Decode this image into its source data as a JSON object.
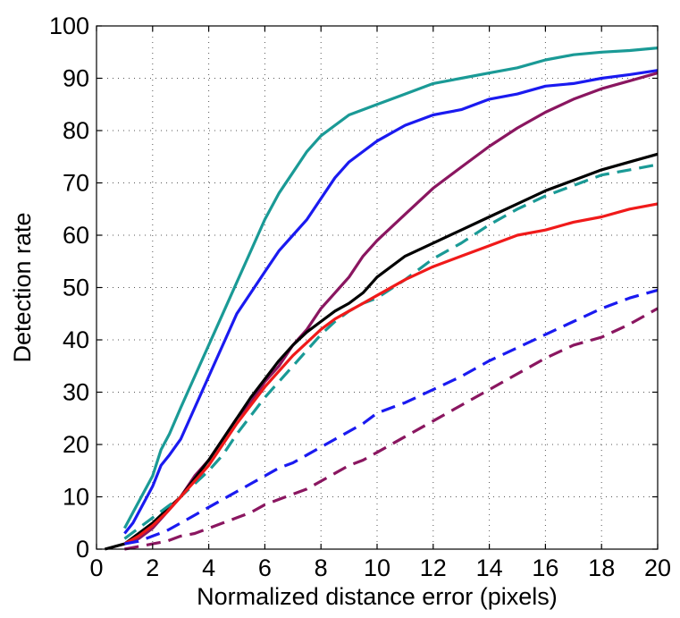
{
  "chart_data": {
    "type": "line",
    "title": "",
    "xlabel": "Normalized distance error (pixels)",
    "ylabel": "Detection rate",
    "xlim": [
      0,
      20
    ],
    "ylim": [
      0,
      100
    ],
    "xticks": [
      0,
      2,
      4,
      6,
      8,
      10,
      12,
      14,
      16,
      18,
      20
    ],
    "yticks": [
      0,
      10,
      20,
      30,
      40,
      50,
      60,
      70,
      80,
      90,
      100
    ],
    "grid": true,
    "legend": "none",
    "series": [
      {
        "name": "teal-solid",
        "color": "#1a9a96",
        "dash": "solid",
        "x": [
          1,
          1.3,
          1.6,
          2,
          2.3,
          2.6,
          3,
          3.5,
          4,
          4.5,
          5,
          5.5,
          6,
          6.5,
          7,
          7.5,
          8,
          8.5,
          9,
          9.5,
          10,
          11,
          12,
          13,
          14,
          15,
          16,
          17,
          18,
          19,
          20
        ],
        "y": [
          4,
          7,
          10,
          14,
          19,
          22,
          27,
          33,
          39,
          45,
          51,
          57,
          63,
          68,
          72,
          76,
          79,
          81,
          83,
          84,
          85,
          87,
          89,
          90,
          91,
          92,
          93.5,
          94.5,
          95,
          95.3,
          95.8
        ]
      },
      {
        "name": "blue-solid",
        "color": "#1a1af0",
        "dash": "solid",
        "x": [
          1,
          1.3,
          1.6,
          2,
          2.3,
          2.6,
          3,
          3.5,
          4,
          4.5,
          5,
          5.5,
          6,
          6.5,
          7,
          7.5,
          8,
          8.5,
          9,
          9.5,
          10,
          11,
          12,
          13,
          14,
          15,
          16,
          17,
          18,
          19,
          20
        ],
        "y": [
          3,
          5,
          8,
          12,
          16,
          18,
          21,
          27,
          33,
          39,
          45,
          49,
          53,
          57,
          60,
          63,
          67,
          71,
          74,
          76,
          78,
          81,
          83,
          84,
          86,
          87,
          88.5,
          89,
          90,
          90.7,
          91.5
        ]
      },
      {
        "name": "purple-solid",
        "color": "#8a1660",
        "dash": "solid",
        "x": [
          1,
          1.5,
          2,
          2.5,
          3,
          3.5,
          4,
          4.5,
          5,
          5.5,
          6,
          6.5,
          7,
          7.5,
          8,
          8.5,
          9,
          9.5,
          10,
          11,
          12,
          13,
          14,
          15,
          16,
          17,
          18,
          19,
          20
        ],
        "y": [
          1,
          2,
          4,
          7,
          10,
          14,
          17,
          21,
          25,
          28,
          32,
          35,
          39,
          42,
          46,
          49,
          52,
          56,
          59,
          64,
          69,
          73,
          77,
          80.5,
          83.5,
          86,
          88,
          89.5,
          91
        ]
      },
      {
        "name": "black-solid",
        "color": "#000000",
        "dash": "solid",
        "x": [
          0.3,
          1,
          1.5,
          2,
          2.5,
          3,
          3.5,
          4,
          4.5,
          5,
          5.5,
          6,
          6.5,
          7,
          7.5,
          8,
          8.5,
          9,
          9.5,
          10,
          11,
          12,
          13,
          14,
          15,
          16,
          17,
          18,
          19,
          20
        ],
        "y": [
          0,
          1,
          3,
          5,
          7.5,
          10,
          13.5,
          17,
          21,
          25,
          29,
          32.5,
          36,
          39,
          41.5,
          43.5,
          45.5,
          47,
          49,
          52,
          56,
          58.5,
          61,
          63.5,
          66,
          68.5,
          70.5,
          72.5,
          74,
          75.5
        ]
      },
      {
        "name": "teal-dashed",
        "color": "#1a9a96",
        "dash": "dashed",
        "x": [
          1,
          1.5,
          2,
          2.5,
          3,
          3.5,
          4,
          4.5,
          5,
          5.5,
          6,
          6.5,
          7,
          7.5,
          8,
          8.5,
          9,
          9.5,
          10,
          11,
          12,
          13,
          14,
          15,
          16,
          17,
          18,
          19,
          20
        ],
        "y": [
          2,
          4,
          6,
          8,
          10,
          12.5,
          15,
          18,
          22,
          25.5,
          29,
          32,
          35,
          38,
          41,
          43.5,
          45.5,
          47,
          48,
          51.5,
          55.5,
          58.5,
          62,
          65,
          67.5,
          69.5,
          71.5,
          72.5,
          73.5
        ]
      },
      {
        "name": "red-solid",
        "color": "#f01a1a",
        "dash": "solid",
        "x": [
          1,
          1.5,
          2,
          2.5,
          3,
          3.5,
          4,
          4.5,
          5,
          5.5,
          6,
          6.5,
          7,
          7.5,
          8,
          8.5,
          9,
          9.5,
          10,
          11,
          12,
          13,
          14,
          15,
          16,
          17,
          18,
          19,
          20
        ],
        "y": [
          1,
          2.5,
          4.5,
          7,
          10,
          13,
          16,
          20,
          24,
          27.5,
          31,
          34,
          37,
          39.5,
          42,
          44,
          45.5,
          47,
          48.5,
          51.5,
          54,
          56,
          58,
          60,
          61,
          62.5,
          63.5,
          65,
          66
        ]
      },
      {
        "name": "blue-dashed",
        "color": "#1a1af0",
        "dash": "dashed",
        "x": [
          1,
          1.5,
          2,
          2.5,
          3,
          3.5,
          4,
          4.5,
          5,
          5.5,
          6,
          6.5,
          7,
          7.5,
          8,
          8.5,
          9,
          9.5,
          10,
          11,
          12,
          13,
          14,
          15,
          16,
          17,
          18,
          19,
          20
        ],
        "y": [
          1,
          1.5,
          2.5,
          3.5,
          5,
          6.5,
          8,
          9.5,
          11,
          12.5,
          14,
          15.5,
          16.5,
          18,
          19.5,
          21,
          22.5,
          24,
          26,
          28,
          30.5,
          33,
          36,
          38.5,
          41,
          43.5,
          46,
          48,
          49.5
        ]
      },
      {
        "name": "purple-dashed",
        "color": "#8a1660",
        "dash": "dashed",
        "x": [
          1,
          1.5,
          2,
          2.5,
          3,
          3.5,
          4,
          4.5,
          5,
          5.5,
          6,
          6.5,
          7,
          7.5,
          8,
          8.5,
          9,
          9.5,
          10,
          11,
          12,
          13,
          14,
          15,
          16,
          17,
          18,
          19,
          20
        ],
        "y": [
          0,
          0.5,
          1,
          1.5,
          2.5,
          3,
          4,
          5,
          6,
          7,
          8.5,
          9.5,
          10.5,
          11.5,
          13,
          14.5,
          16,
          17,
          18.5,
          21.5,
          24.5,
          27.5,
          30.5,
          33.5,
          36.5,
          39,
          40.5,
          43,
          46
        ]
      }
    ]
  }
}
